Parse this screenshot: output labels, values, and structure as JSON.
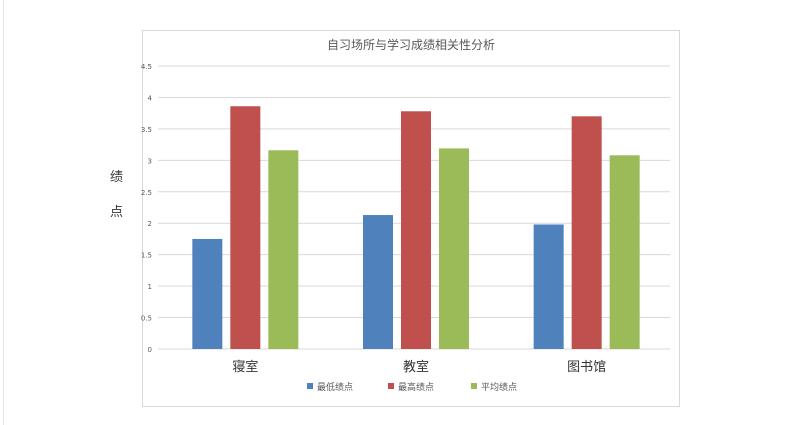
{
  "chart_data": {
    "type": "bar",
    "title": "自习场所与学习成绩相关性分析",
    "xlabel": "",
    "ylabel": "绩点",
    "categories": [
      "寝室",
      "教室",
      "图书馆"
    ],
    "series": [
      {
        "name": "最低绩点",
        "color": "#4f81bd",
        "values": [
          1.75,
          2.13,
          1.98
        ]
      },
      {
        "name": "最高绩点",
        "color": "#c0504d",
        "values": [
          3.86,
          3.78,
          3.7
        ]
      },
      {
        "name": "平均绩点",
        "color": "#9bbb59",
        "values": [
          3.16,
          3.19,
          3.08
        ]
      }
    ],
    "ylim": [
      0,
      4.5
    ],
    "yticks": [
      "0",
      "0.5",
      "1",
      "1.5",
      "2",
      "2.5",
      "3",
      "3.5",
      "4",
      "4.5"
    ],
    "grid": true,
    "legend": "bottom"
  }
}
